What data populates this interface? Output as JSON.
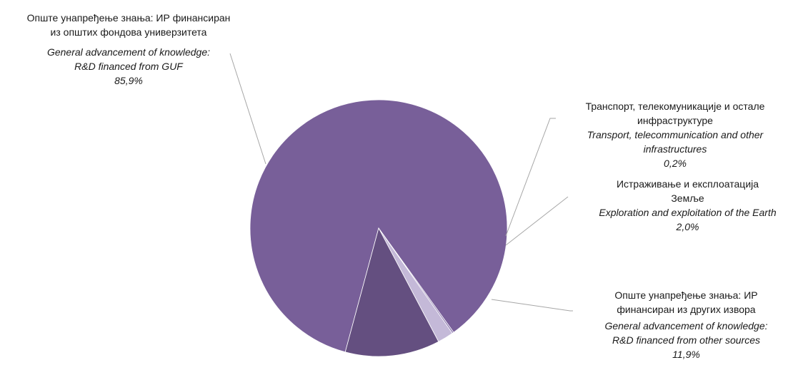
{
  "chart_data": {
    "type": "pie",
    "title": "",
    "slices": [
      {
        "label_sr": "Опште унапређење знања: ИР финансиран из општих фондова универзитета",
        "label_sr_lines": [
          "Опште унапређење знања: ИР финансиран",
          "из општих фондова универзитета"
        ],
        "label_en_lines": [
          "General advancement of knowledge:",
          "R&D financed from GUF"
        ],
        "value": 85.9,
        "value_label": "85,9%",
        "color": "#785f99"
      },
      {
        "label_sr": "Транспорт, телекомуникације и остале инфраструктуре",
        "label_sr_lines": [
          "Транспорт, телекомуникације и остале",
          "инфраструктуре"
        ],
        "label_en_lines": [
          "Transport, telecommunication and other",
          "infrastructures"
        ],
        "value": 0.2,
        "value_label": "0,2%",
        "color": "#8e7bb0"
      },
      {
        "label_sr": "Истраживање и експлоатација Земље",
        "label_sr_lines": [
          "Истраживање и експлоатација",
          "Земље"
        ],
        "label_en_lines": [
          "Exploration and exploitation of the Earth"
        ],
        "value": 2.0,
        "value_label": "2,0%",
        "color": "#c4b9d8"
      },
      {
        "label_sr": "Опште унапређење знања: ИР финансиран из других извора",
        "label_sr_lines": [
          "Опште унапређење знања: ИР",
          "финансиран из других извора"
        ],
        "label_en_lines": [
          "General advancement of knowledge:",
          "R&D financed from other sources"
        ],
        "value": 11.9,
        "value_label": "11,9%",
        "color": "#644f80"
      }
    ]
  }
}
